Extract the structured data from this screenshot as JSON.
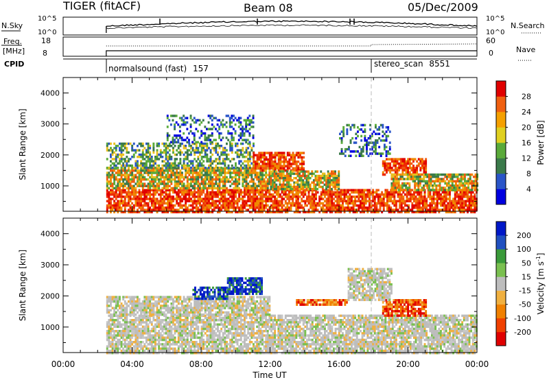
{
  "header": {
    "station": "TIGER (fitACF)",
    "beam": "Beam 08",
    "date": "05/Dec/2009"
  },
  "top_panels": {
    "nsky": {
      "label": "N.Sky",
      "ticks_left": [
        "10^5",
        "10^0"
      ],
      "ticks_right": [
        "10^5",
        "10^0"
      ],
      "right_label": "N.Search"
    },
    "freq": {
      "label": "Freq.",
      "unit": "[MHz]",
      "ticks_left": [
        "18",
        "8"
      ],
      "ticks_right": [
        "60",
        "0"
      ],
      "right_label": "Nave"
    },
    "cpid": {
      "label": "CPID",
      "segments": [
        {
          "name": "normalsound (fast)",
          "id": "157",
          "start_hour": 2.5,
          "end_hour": 18.0
        },
        {
          "name": "stereo_scan",
          "id": "8551",
          "start_hour": 18.0,
          "end_hour": 24.0
        }
      ]
    }
  },
  "chart_data": [
    {
      "type": "heatmap",
      "title": "",
      "xlabel": "Time UT",
      "ylabel": "Slant Range [km]",
      "xlim": [
        0,
        24
      ],
      "ylim": [
        180,
        4500
      ],
      "x_tick_labels": [
        "00:00",
        "04:00",
        "08:00",
        "12:00",
        "16:00",
        "20:00",
        "00:00"
      ],
      "y_tick_labels": [
        "1000",
        "2000",
        "3000",
        "4000"
      ],
      "colorbar": {
        "label": "Power [dB]",
        "tick_labels": [
          "28",
          "24",
          "20",
          "16",
          "12",
          "8",
          "4"
        ],
        "range": [
          0,
          30
        ],
        "colors": [
          "#0000e0",
          "#2a55c8",
          "#3b7a4a",
          "#5aaa3a",
          "#e0d020",
          "#f5a000",
          "#f06010",
          "#e00000"
        ]
      },
      "data_start_hour": 2.5,
      "regions": [
        {
          "t0": 2.5,
          "t1": 24.0,
          "r0": 180,
          "r1": 900,
          "level": "high"
        },
        {
          "t0": 2.5,
          "t1": 12.0,
          "r0": 900,
          "r1": 1600,
          "level": "mid"
        },
        {
          "t0": 2.5,
          "t1": 11.0,
          "r0": 1600,
          "r1": 2400,
          "level": "low"
        },
        {
          "t0": 6.0,
          "t1": 11.0,
          "r0": 2400,
          "r1": 3300,
          "level": "weak"
        },
        {
          "t0": 11.0,
          "t1": 14.0,
          "r0": 1500,
          "r1": 2100,
          "level": "high"
        },
        {
          "t0": 12.0,
          "t1": 16.0,
          "r0": 900,
          "r1": 1500,
          "level": "mid"
        },
        {
          "t0": 16.0,
          "t1": 19.0,
          "r0": 2000,
          "r1": 3000,
          "level": "weak"
        },
        {
          "t0": 18.5,
          "t1": 21.0,
          "r0": 1400,
          "r1": 1900,
          "level": "high"
        },
        {
          "t0": 19.0,
          "t1": 24.0,
          "r0": 900,
          "r1": 1400,
          "level": "mid"
        }
      ]
    },
    {
      "type": "heatmap",
      "title": "",
      "xlabel": "Time UT",
      "ylabel": "Slant Range [km]",
      "xlim": [
        0,
        24
      ],
      "ylim": [
        180,
        4500
      ],
      "x_tick_labels": [
        "00:00",
        "04:00",
        "08:00",
        "12:00",
        "16:00",
        "20:00",
        "00:00"
      ],
      "y_tick_labels": [
        "1000",
        "2000",
        "3000",
        "4000"
      ],
      "colorbar": {
        "label": "Velocity [m s",
        "label_exp": "-1",
        "label_end": "]",
        "tick_labels": [
          "200",
          "100",
          "50",
          "15",
          "-15",
          "-50",
          "-100",
          "-200"
        ],
        "range": [
          -250,
          250
        ],
        "colors": [
          "#e00000",
          "#f04000",
          "#f08000",
          "#f0b040",
          "#bdbdbd",
          "#7ac050",
          "#3a9a3a",
          "#2050c0",
          "#0018c8"
        ]
      },
      "data_start_hour": 2.5,
      "regions": [
        {
          "t0": 2.5,
          "t1": 24.0,
          "r0": 180,
          "r1": 1400,
          "level": "ground"
        },
        {
          "t0": 2.5,
          "t1": 12.0,
          "r0": 1400,
          "r1": 2000,
          "level": "ground"
        },
        {
          "t0": 9.5,
          "t1": 11.5,
          "r0": 2100,
          "r1": 2600,
          "level": "toward"
        },
        {
          "t0": 7.5,
          "t1": 9.5,
          "r0": 1900,
          "r1": 2300,
          "level": "toward"
        },
        {
          "t0": 13.5,
          "t1": 16.5,
          "r0": 1700,
          "r1": 1900,
          "level": "away"
        },
        {
          "t0": 18.5,
          "t1": 21.0,
          "r0": 1400,
          "r1": 1900,
          "level": "away"
        },
        {
          "t0": 16.5,
          "t1": 19.0,
          "r0": 1900,
          "r1": 2900,
          "level": "ground"
        }
      ]
    }
  ]
}
